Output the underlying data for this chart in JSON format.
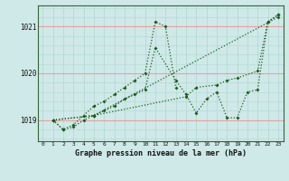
{
  "bg_color": "#cfe8e8",
  "grid_h_color": "#e8a0a0",
  "grid_v_color": "#b0d8d0",
  "line_color": "#1a5c1a",
  "xlabel": "Graphe pression niveau de la mer (hPa)",
  "ylim": [
    1018.55,
    1021.45
  ],
  "xlim": [
    -0.5,
    23.5
  ],
  "yticks": [
    1019,
    1020,
    1021
  ],
  "xticks": [
    0,
    1,
    2,
    3,
    4,
    5,
    6,
    7,
    8,
    9,
    10,
    11,
    12,
    13,
    14,
    15,
    16,
    17,
    18,
    19,
    20,
    21,
    22,
    23
  ],
  "series": [
    {
      "x": [
        1,
        2,
        3,
        4,
        5,
        6,
        7,
        8,
        9,
        10,
        11,
        12,
        13
      ],
      "y": [
        1019.0,
        1018.8,
        1018.9,
        1019.1,
        1019.3,
        1019.4,
        1019.55,
        1019.7,
        1019.85,
        1020.0,
        1021.1,
        1021.0,
        1019.7
      ]
    },
    {
      "x": [
        1,
        2,
        3,
        4,
        5,
        6,
        7,
        8,
        9,
        10,
        11,
        13,
        14,
        15,
        16,
        17,
        18,
        19,
        20,
        21,
        22,
        23
      ],
      "y": [
        1019.0,
        1018.8,
        1018.85,
        1019.0,
        1019.1,
        1019.2,
        1019.3,
        1019.45,
        1019.55,
        1019.65,
        1020.55,
        1019.85,
        1019.55,
        1019.15,
        1019.45,
        1019.6,
        1019.05,
        1019.05,
        1019.6,
        1019.65,
        1021.1,
        1021.25
      ]
    },
    {
      "x": [
        1,
        5,
        23
      ],
      "y": [
        1019.0,
        1019.1,
        1021.2
      ]
    },
    {
      "x": [
        1,
        5,
        14,
        15,
        17,
        18,
        19,
        21,
        22,
        23
      ],
      "y": [
        1019.0,
        1019.1,
        1019.5,
        1019.7,
        1019.75,
        1019.85,
        1019.9,
        1020.05,
        1021.1,
        1021.25
      ]
    }
  ]
}
